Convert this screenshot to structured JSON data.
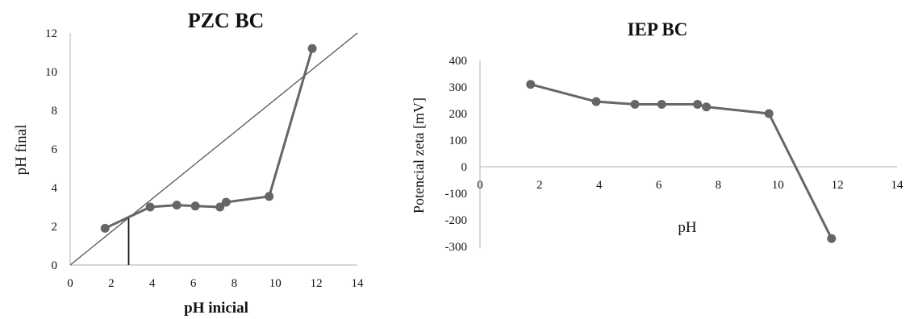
{
  "chart_data": [
    {
      "type": "line",
      "title": "PZC BC",
      "xlabel": "pH inicial",
      "ylabel": "pH final",
      "xlim": [
        0,
        14
      ],
      "ylim": [
        0,
        12
      ],
      "x_ticks": [
        "0",
        "2",
        "4",
        "6",
        "8",
        "10",
        "12",
        "14"
      ],
      "y_ticks": [
        "0",
        "2",
        "4",
        "6",
        "8",
        "10",
        "12"
      ],
      "grid": false,
      "series": [
        {
          "x": [
            1.7,
            3.9,
            5.2,
            6.1,
            7.3,
            7.6,
            9.7,
            11.8
          ],
          "y": [
            1.9,
            3.0,
            3.1,
            3.05,
            3.0,
            3.25,
            3.55,
            11.2
          ],
          "color": "#666666"
        }
      ],
      "reference_line": {
        "x": [
          0,
          14
        ],
        "y": [
          0,
          12
        ],
        "color": "#555555"
      },
      "pzc_marker": {
        "x": 2.85,
        "y": 2.55,
        "color": "#111111"
      }
    },
    {
      "type": "line",
      "title": "IEP BC",
      "xlabel": "pH",
      "ylabel": "Potencial zeta [mV]",
      "xlim": [
        0,
        14
      ],
      "ylim": [
        -300,
        400
      ],
      "x_ticks": [
        "0",
        "2",
        "4",
        "6",
        "8",
        "10",
        "12",
        "14"
      ],
      "y_ticks": [
        "400",
        "300",
        "200",
        "100",
        "0",
        "-100",
        "-200",
        "-300"
      ],
      "grid": false,
      "series": [
        {
          "x": [
            1.7,
            3.9,
            5.2,
            6.1,
            7.3,
            7.6,
            9.7,
            11.8
          ],
          "y": [
            310,
            245,
            235,
            235,
            235,
            225,
            200,
            -270
          ],
          "color": "#666666"
        }
      ]
    }
  ]
}
